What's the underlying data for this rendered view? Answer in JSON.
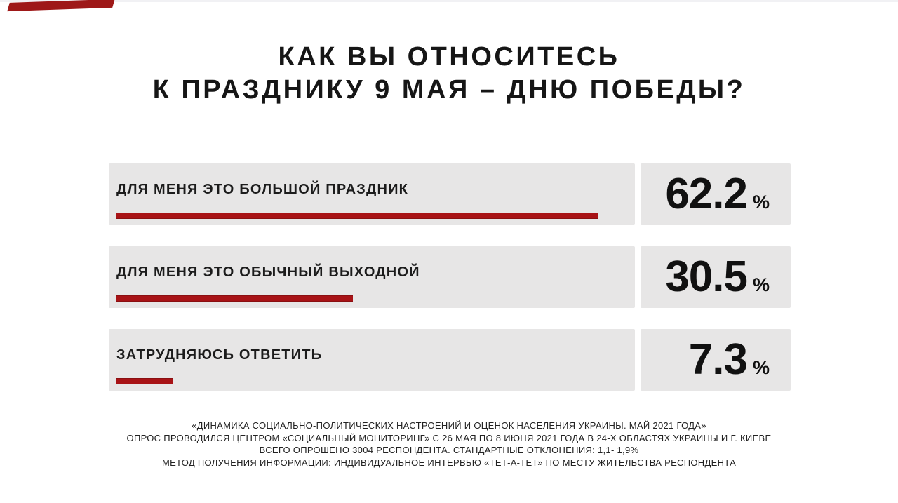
{
  "accent_color": "#9e1818",
  "panel_color": "#e7e6e6",
  "title": {
    "line1": "КАК ВЫ ОТНОСИТЕСЬ",
    "line2": "К ПРАЗДНИКУ 9 МАЯ – ДНЮ ПОБЕДЫ?"
  },
  "chart_data": {
    "type": "bar",
    "orientation": "horizontal",
    "title": "КАК ВЫ ОТНОСИТЕСЬ К ПРАЗДНИКУ 9 МАЯ – ДНЮ ПОБЕДЫ?",
    "categories": [
      "ДЛЯ МЕНЯ ЭТО БОЛЬШОЙ ПРАЗДНИК",
      "ДЛЯ МЕНЯ ЭТО ОБЫЧНЫЙ ВЫХОДНОЙ",
      "ЗАТРУДНЯЮСЬ ОТВЕТИТЬ"
    ],
    "values": [
      62.2,
      30.5,
      7.3
    ],
    "value_labels": [
      "62.2",
      "30.5",
      "7.3"
    ],
    "unit": "%",
    "bar_color": "#a81316",
    "xlim": [
      0,
      100
    ],
    "grid": false,
    "legend": false
  },
  "footer": {
    "lines": [
      "«ДИНАМИКА СОЦИАЛЬНО-ПОЛИТИЧЕСКИХ НАСТРОЕНИЙ И ОЦЕНОК НАСЕЛЕНИЯ УКРАИНЫ. МАЙ 2021 ГОДА»",
      "ОПРОС ПРОВОДИЛСЯ ЦЕНТРОМ «СОЦИАЛЬНЫЙ МОНИТОРИНГ» С 26 МАЯ ПО 8 ИЮНЯ 2021 ГОДА В 24-Х ОБЛАСТЯХ УКРАИНЫ И Г. КИЕВЕ",
      "ВСЕГО ОПРОШЕНО 3004 РЕСПОНДЕНТА. СТАНДАРТНЫЕ ОТКЛОНЕНИЯ: 1,1- 1,9%",
      "МЕТОД ПОЛУЧЕНИЯ ИНФОРМАЦИИ: ИНДИВИДУАЛЬНОЕ ИНТЕРВЬЮ «ТЕТ-А-ТЕТ» ПО МЕСТУ ЖИТЕЛЬСТВА РЕСПОНДЕНТА"
    ]
  }
}
